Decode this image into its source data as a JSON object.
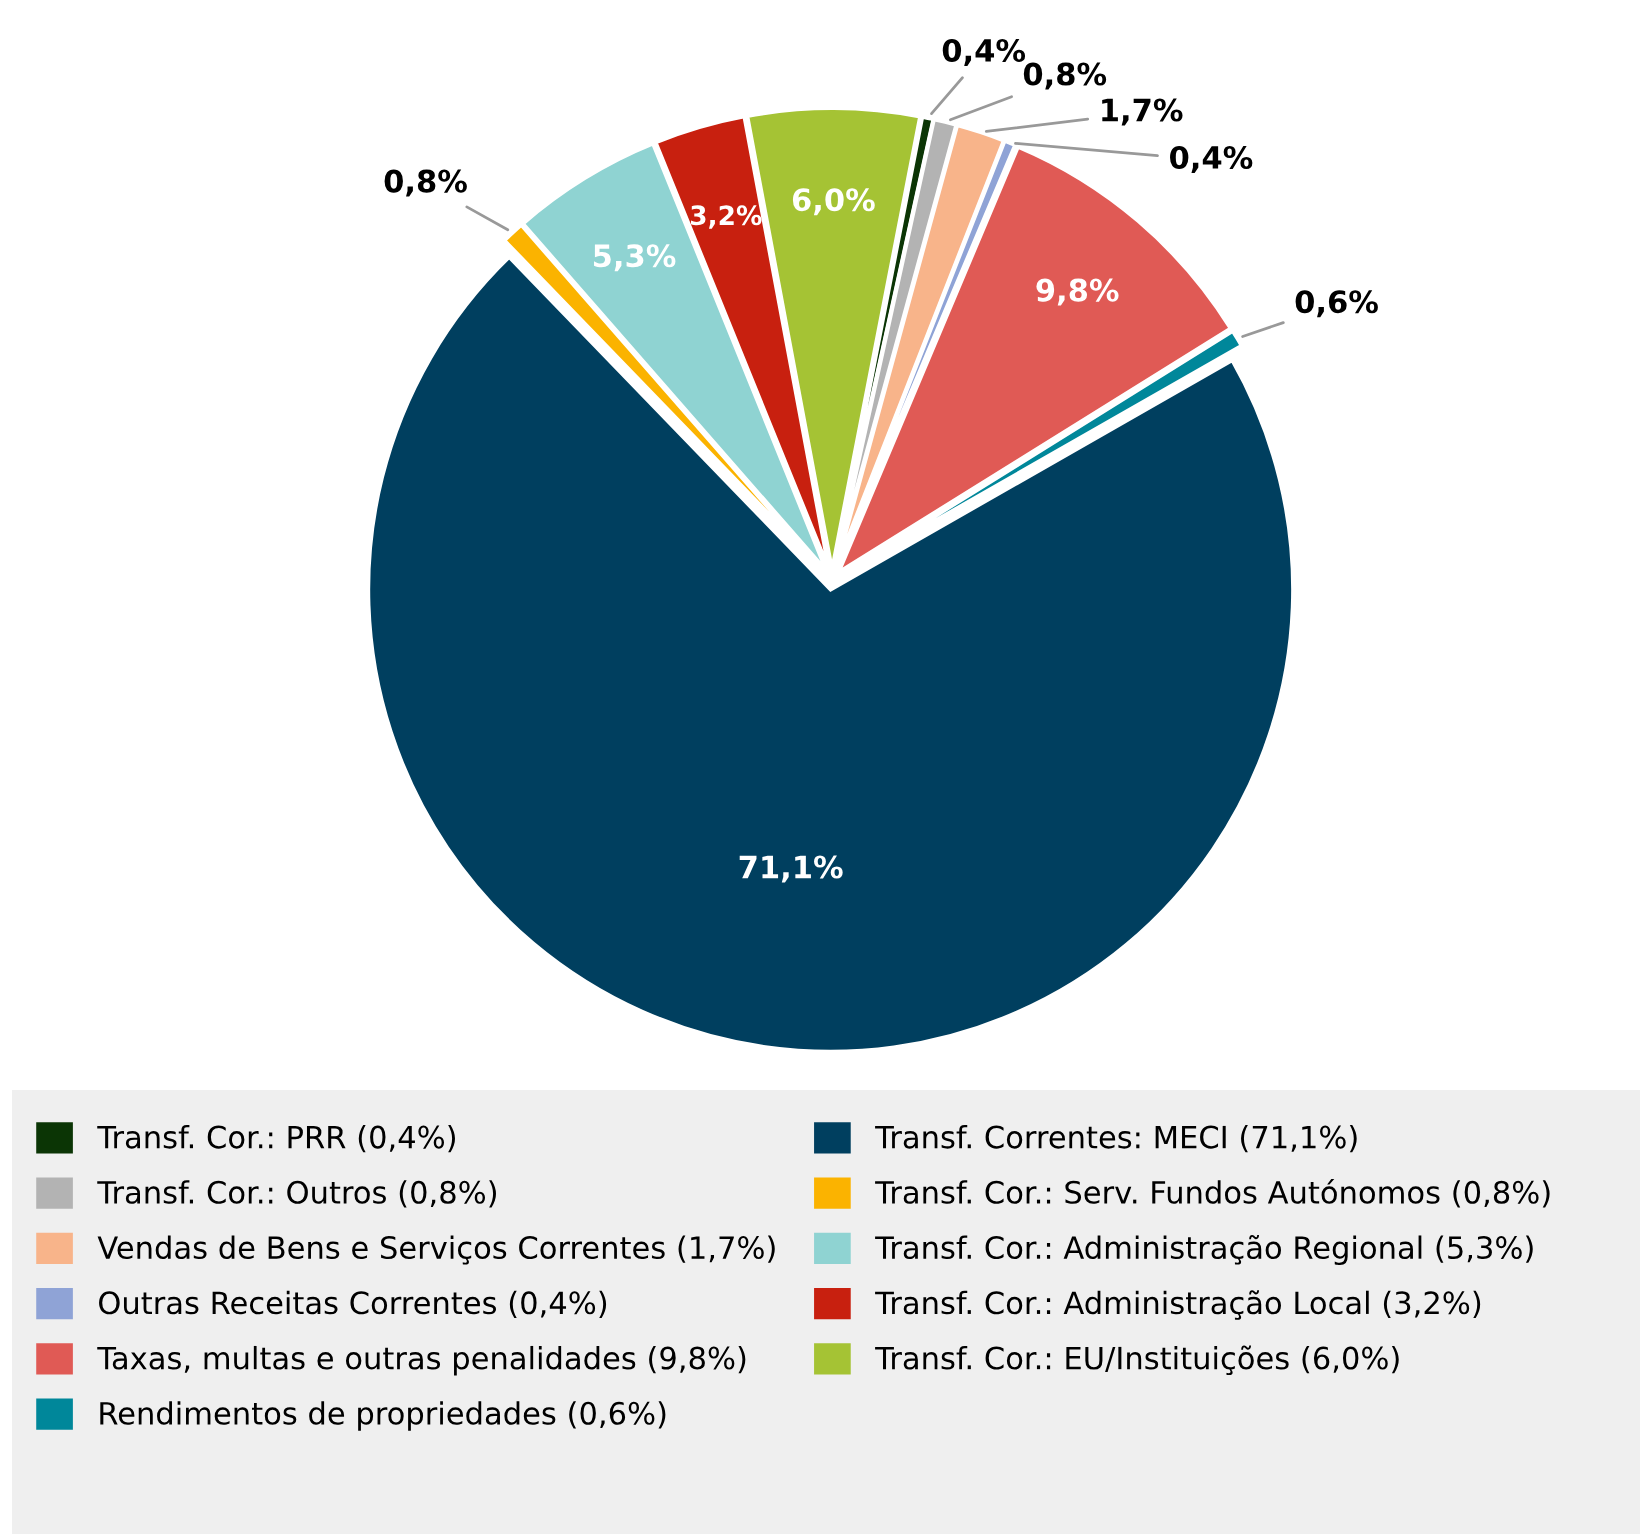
{
  "chart_data": {
    "type": "pie",
    "categories": [
      "Transf. Cor.: PRR (0,4%)",
      "Transf. Cor.: Outros (0,8%)",
      "Vendas de Bens e Serviços Correntes (1,7%)",
      "Outras Receitas Correntes (0,4%)",
      "Taxas, multas e outras penalidades (9,8%)",
      "Rendimentos de propriedades (0,6%)",
      "Transf. Correntes: MECI (71,1%)",
      "Transf. Cor.: Serv. Fundos Autónomos (0,8%)",
      "Transf. Cor.: Administração Regional (5,3%)",
      "Transf. Cor.: Administração Local (3,2%)",
      "Transf. Cor.: EU/Instituições (6,0%)"
    ],
    "values": [
      0.4,
      0.8,
      1.7,
      0.4,
      9.8,
      0.6,
      71.1,
      0.8,
      5.3,
      3.2,
      6.0
    ],
    "value_labels": [
      "0,4%",
      "0,8%",
      "1,7%",
      "0,4%",
      "9,8%",
      "0,6%",
      "71,1%",
      "0,8%",
      "5,3%",
      "3,2%",
      "6,0%"
    ],
    "colors": [
      "#0b3505",
      "#b3b3b3",
      "#f8b48a",
      "#8fa3d6",
      "#e05a55",
      "#00879a",
      "#003f5f",
      "#fbb300",
      "#8fd3d2",
      "#c8200f",
      "#a5c334"
    ],
    "legend": "bottom"
  }
}
